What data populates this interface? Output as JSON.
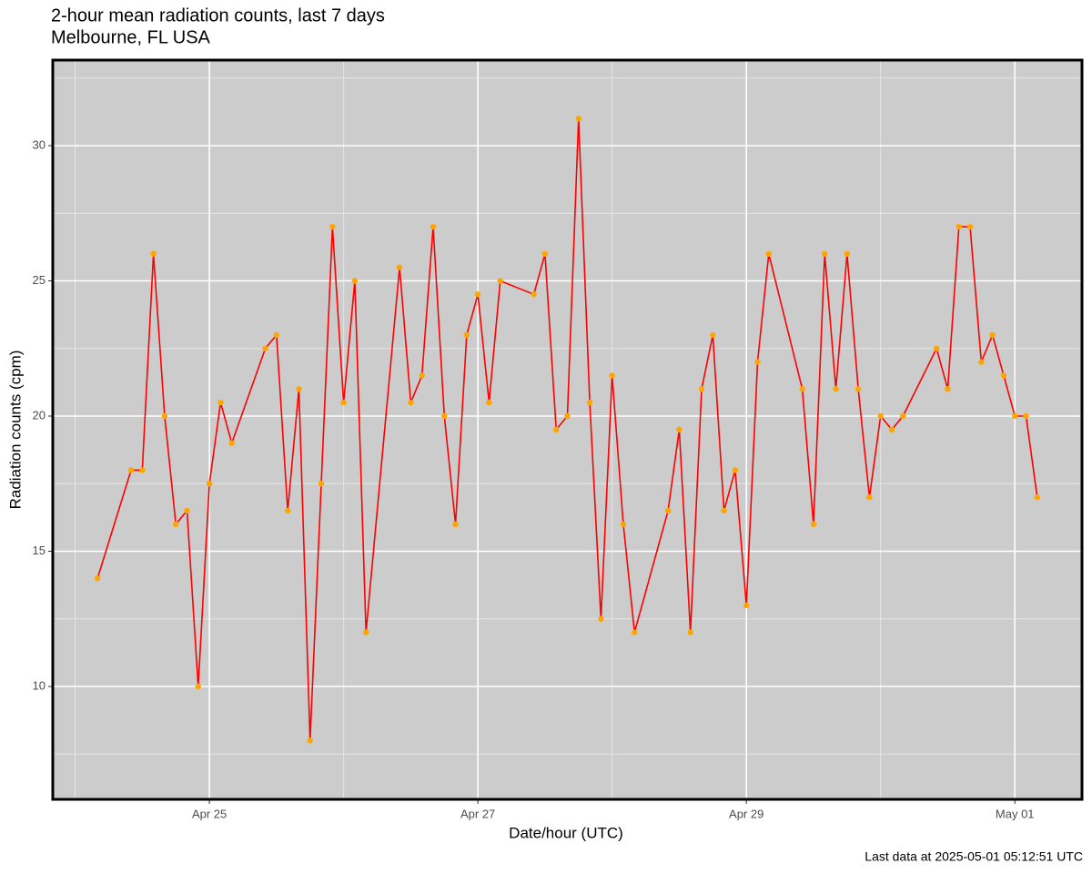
{
  "chart_data": {
    "type": "line",
    "title": "2-hour mean radiation counts, last 7 days",
    "subtitle": "Melbourne, FL USA",
    "x_label": "Date/hour (UTC)",
    "y_label": "Radiation counts (cpm)",
    "caption": "Last data at 2025-05-01 05:12:51 UTC",
    "x": [
      "Apr 24 04:00",
      "Apr 24 10:00",
      "Apr 24 12:00",
      "Apr 24 14:00",
      "Apr 24 16:00",
      "Apr 24 18:00",
      "Apr 24 20:00",
      "Apr 24 22:00",
      "Apr 25 00:00",
      "Apr 25 02:00",
      "Apr 25 04:00",
      "Apr 25 10:00",
      "Apr 25 12:00",
      "Apr 25 14:00",
      "Apr 25 16:00",
      "Apr 25 18:00",
      "Apr 25 20:00",
      "Apr 25 22:00",
      "Apr 26 00:00",
      "Apr 26 02:00",
      "Apr 26 04:00",
      "Apr 26 10:00",
      "Apr 26 12:00",
      "Apr 26 14:00",
      "Apr 26 16:00",
      "Apr 26 18:00",
      "Apr 26 20:00",
      "Apr 26 22:00",
      "Apr 27 00:00",
      "Apr 27 02:00",
      "Apr 27 04:00",
      "Apr 27 10:00",
      "Apr 27 12:00",
      "Apr 27 14:00",
      "Apr 27 16:00",
      "Apr 27 18:00",
      "Apr 27 20:00",
      "Apr 27 22:00",
      "Apr 28 00:00",
      "Apr 28 02:00",
      "Apr 28 04:00",
      "Apr 28 10:00",
      "Apr 28 12:00",
      "Apr 28 14:00",
      "Apr 28 16:00",
      "Apr 28 18:00",
      "Apr 28 20:00",
      "Apr 28 22:00",
      "Apr 29 00:00",
      "Apr 29 02:00",
      "Apr 29 04:00",
      "Apr 29 10:00",
      "Apr 29 12:00",
      "Apr 29 14:00",
      "Apr 29 16:00",
      "Apr 29 18:00",
      "Apr 29 20:00",
      "Apr 29 22:00",
      "Apr 30 00:00",
      "Apr 30 02:00",
      "Apr 30 04:00",
      "Apr 30 10:00",
      "Apr 30 12:00",
      "Apr 30 14:00",
      "Apr 30 16:00",
      "Apr 30 18:00",
      "Apr 30 20:00",
      "Apr 30 22:00",
      "May 01 00:00",
      "May 01 02:00",
      "May 01 04:00"
    ],
    "values": [
      14,
      18,
      18,
      26,
      20,
      16,
      16.5,
      10,
      17.5,
      20.5,
      19,
      22.5,
      23,
      16.5,
      21,
      8,
      17.5,
      27,
      20.5,
      25,
      12,
      25.5,
      20.5,
      21.5,
      27,
      20,
      16,
      23,
      24.5,
      20.5,
      25,
      24.5,
      26,
      19.5,
      20,
      31,
      20.5,
      12.5,
      21.5,
      16,
      12,
      16.5,
      19.5,
      12,
      21,
      23,
      16.5,
      18,
      13,
      22,
      26,
      21,
      16,
      26,
      21,
      26,
      21,
      17,
      20,
      19.5,
      20,
      22.5,
      21,
      27,
      27,
      22,
      23,
      21.5,
      20,
      20,
      17
    ],
    "line_color": "#ff0000",
    "point_color": "#ffa500",
    "xlim": [
      "Apr 23 20:00",
      "May 01 12:00"
    ],
    "xticks": [
      {
        "value": "Apr 25 00:00",
        "label": "Apr 25"
      },
      {
        "value": "Apr 27 00:00",
        "label": "Apr 27"
      },
      {
        "value": "Apr 29 00:00",
        "label": "Apr 29"
      },
      {
        "value": "May 01 00:00",
        "label": "May 01"
      }
    ],
    "ylim": [
      5.825,
      33.165
    ],
    "yticks": [
      10,
      15,
      20,
      25,
      30
    ],
    "grid": true
  }
}
